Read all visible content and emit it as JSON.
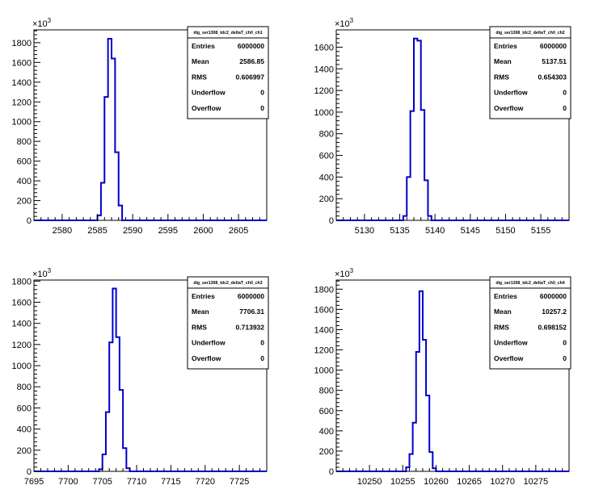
{
  "chart_data": [
    {
      "type": "histogram",
      "title": "",
      "exponent_label": "×10",
      "exponent_power": "3",
      "xlim": [
        2576,
        2609
      ],
      "ylim": [
        0,
        1930
      ],
      "xticks": [
        2580,
        2585,
        2590,
        2595,
        2600,
        2605
      ],
      "yticks": [
        0,
        200,
        400,
        600,
        800,
        1000,
        1200,
        1400,
        1600,
        1800
      ],
      "bins_start": 2584,
      "bin_width": 0.5,
      "counts": [
        0,
        0,
        50,
        380,
        1250,
        1840,
        1640,
        690,
        150,
        0,
        0
      ],
      "stats": {
        "name": "dig_ser1308_tdc2_deltaT_ch0_ch1",
        "rows": [
          {
            "label": "Entries",
            "value": "6000000"
          },
          {
            "label": "Mean",
            "value": "2586.85"
          },
          {
            "label": "RMS",
            "value": "0.606997"
          },
          {
            "label": "Underflow",
            "value": "0"
          },
          {
            "label": "Overflow",
            "value": "0"
          }
        ]
      }
    },
    {
      "type": "histogram",
      "title": "",
      "exponent_label": "×10",
      "exponent_power": "3",
      "xlim": [
        5126,
        5159
      ],
      "ylim": [
        0,
        1760
      ],
      "xticks": [
        5130,
        5135,
        5140,
        5145,
        5150,
        5155
      ],
      "yticks": [
        0,
        200,
        400,
        600,
        800,
        1000,
        1200,
        1400,
        1600
      ],
      "bins_start": 5135,
      "bin_width": 0.5,
      "counts": [
        0,
        40,
        400,
        1010,
        1680,
        1660,
        1020,
        370,
        40,
        0
      ],
      "stats": {
        "name": "dig_ser1308_tdc2_deltaT_ch0_ch2",
        "rows": [
          {
            "label": "Entries",
            "value": "6000000"
          },
          {
            "label": "Mean",
            "value": "5137.51"
          },
          {
            "label": "RMS",
            "value": "0.654303"
          },
          {
            "label": "Underflow",
            "value": "0"
          },
          {
            "label": "Overflow",
            "value": "0"
          }
        ]
      }
    },
    {
      "type": "histogram",
      "title": "",
      "exponent_label": "×10",
      "exponent_power": "3",
      "xlim": [
        7695,
        7729
      ],
      "ylim": [
        0,
        1810
      ],
      "xticks": [
        7695,
        7700,
        7705,
        7710,
        7715,
        7720,
        7725
      ],
      "yticks": [
        0,
        200,
        400,
        600,
        800,
        1000,
        1200,
        1400,
        1600,
        1800
      ],
      "bins_start": 7704,
      "bin_width": 0.5,
      "counts": [
        0,
        20,
        160,
        560,
        1220,
        1730,
        1270,
        770,
        220,
        30,
        0
      ],
      "stats": {
        "name": "dig_ser1308_tdc2_deltaT_ch0_ch3",
        "rows": [
          {
            "label": "Entries",
            "value": "6000000"
          },
          {
            "label": "Mean",
            "value": "7706.31"
          },
          {
            "label": "RMS",
            "value": "0.713932"
          },
          {
            "label": "Underflow",
            "value": "0"
          },
          {
            "label": "Overflow",
            "value": "0"
          }
        ]
      }
    },
    {
      "type": "histogram",
      "title": "",
      "exponent_label": "×10",
      "exponent_power": "3",
      "xlim": [
        10245,
        10280
      ],
      "ylim": [
        0,
        1890
      ],
      "xticks": [
        10250,
        10255,
        10260,
        10265,
        10270,
        10275
      ],
      "yticks": [
        0,
        200,
        400,
        600,
        800,
        1000,
        1200,
        1400,
        1600,
        1800
      ],
      "bins_start": 10255,
      "bin_width": 0.5,
      "counts": [
        0,
        40,
        170,
        480,
        1180,
        1780,
        1300,
        750,
        190,
        30,
        0
      ],
      "stats": {
        "name": "dig_ser1308_tdc2_deltaT_ch0_ch4",
        "rows": [
          {
            "label": "Entries",
            "value": "6000000"
          },
          {
            "label": "Mean",
            "value": "10257.2"
          },
          {
            "label": "RMS",
            "value": "0.698152"
          },
          {
            "label": "Underflow",
            "value": "0"
          },
          {
            "label": "Overflow",
            "value": "0"
          }
        ]
      }
    }
  ],
  "colors": {
    "line": "#0000cc",
    "axis": "#000000",
    "background": "#ffffff"
  }
}
